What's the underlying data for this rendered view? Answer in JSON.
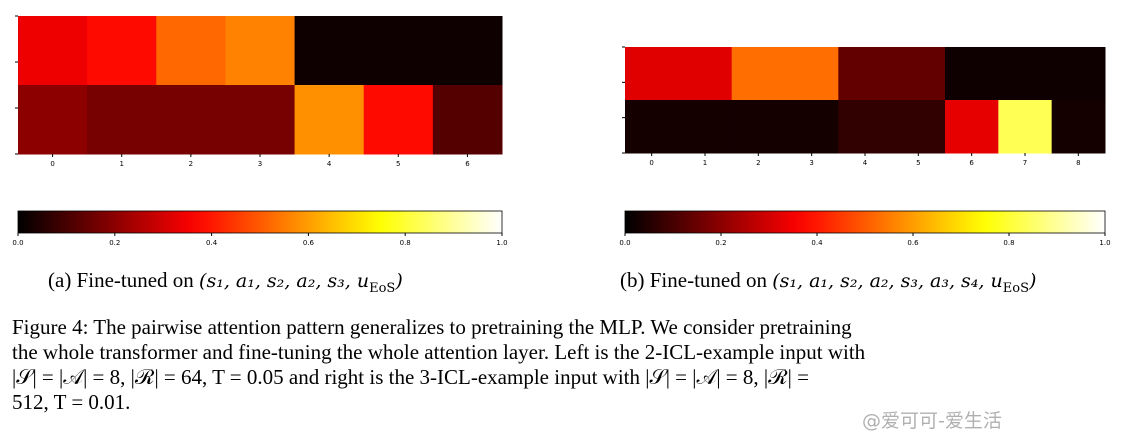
{
  "chart_data": [
    {
      "type": "heatmap",
      "caption": "(a) Fine-tuned on (s1, a1, s2, a2, s3, uEoS)",
      "x_ticks": [
        "0",
        "1",
        "2",
        "3",
        "4",
        "5",
        "6"
      ],
      "rows": [
        [
          0.34,
          0.38,
          0.52,
          0.56,
          0.02,
          0.02,
          0.02
        ],
        [
          0.2,
          0.17,
          0.17,
          0.17,
          0.58,
          0.38,
          0.12
        ]
      ],
      "colormap": "hot",
      "colorbar": {
        "range": [
          0.0,
          1.0
        ],
        "ticks": [
          "0.0",
          "0.2",
          "0.4",
          "0.6",
          "0.8",
          "1.0"
        ]
      }
    },
    {
      "type": "heatmap",
      "caption": "(b) Fine-tuned on (s1, a1, s2, a2, s3, a3, s4, uEoS)",
      "x_ticks": [
        "0",
        "1",
        "2",
        "3",
        "4",
        "5",
        "6",
        "7",
        "8"
      ],
      "rows": [
        [
          0.32,
          0.32,
          0.53,
          0.53,
          0.14,
          0.14,
          0.02,
          0.02,
          0.02
        ],
        [
          0.03,
          0.03,
          0.03,
          0.03,
          0.07,
          0.07,
          0.33,
          0.83,
          0.03
        ]
      ],
      "colormap": "hot",
      "colorbar": {
        "range": [
          0.0,
          1.0
        ],
        "ticks": [
          "0.0",
          "0.2",
          "0.4",
          "0.6",
          "0.8",
          "1.0"
        ]
      }
    }
  ],
  "captions": {
    "a_prefix": "(a) Fine-tuned on ",
    "a_math": "(s₁, a₁, s₂, a₂, s₃, u",
    "a_sub": "EoS",
    "a_close": ")",
    "b_prefix": "(b) Fine-tuned on ",
    "b_math": "(s₁, a₁, s₂, a₂, s₃, a₃, s₄, u",
    "b_sub": "EoS",
    "b_close": ")"
  },
  "figure_caption": {
    "line1": "Figure 4: The pairwise attention pattern generalizes to pretraining the MLP. We consider pretraining",
    "line2": "the whole transformer and fine-tuning the whole attention layer. Left is the 2-ICL-example input with",
    "line3": "|𝒮| = |𝒜| = 8, |ℛ| = 64, T = 0.05 and right is the 3-ICL-example input with |𝒮| = |𝒜| = 8, |ℛ| =",
    "line4": "512, T = 0.01."
  },
  "watermark": "@爱可可-爱生活"
}
